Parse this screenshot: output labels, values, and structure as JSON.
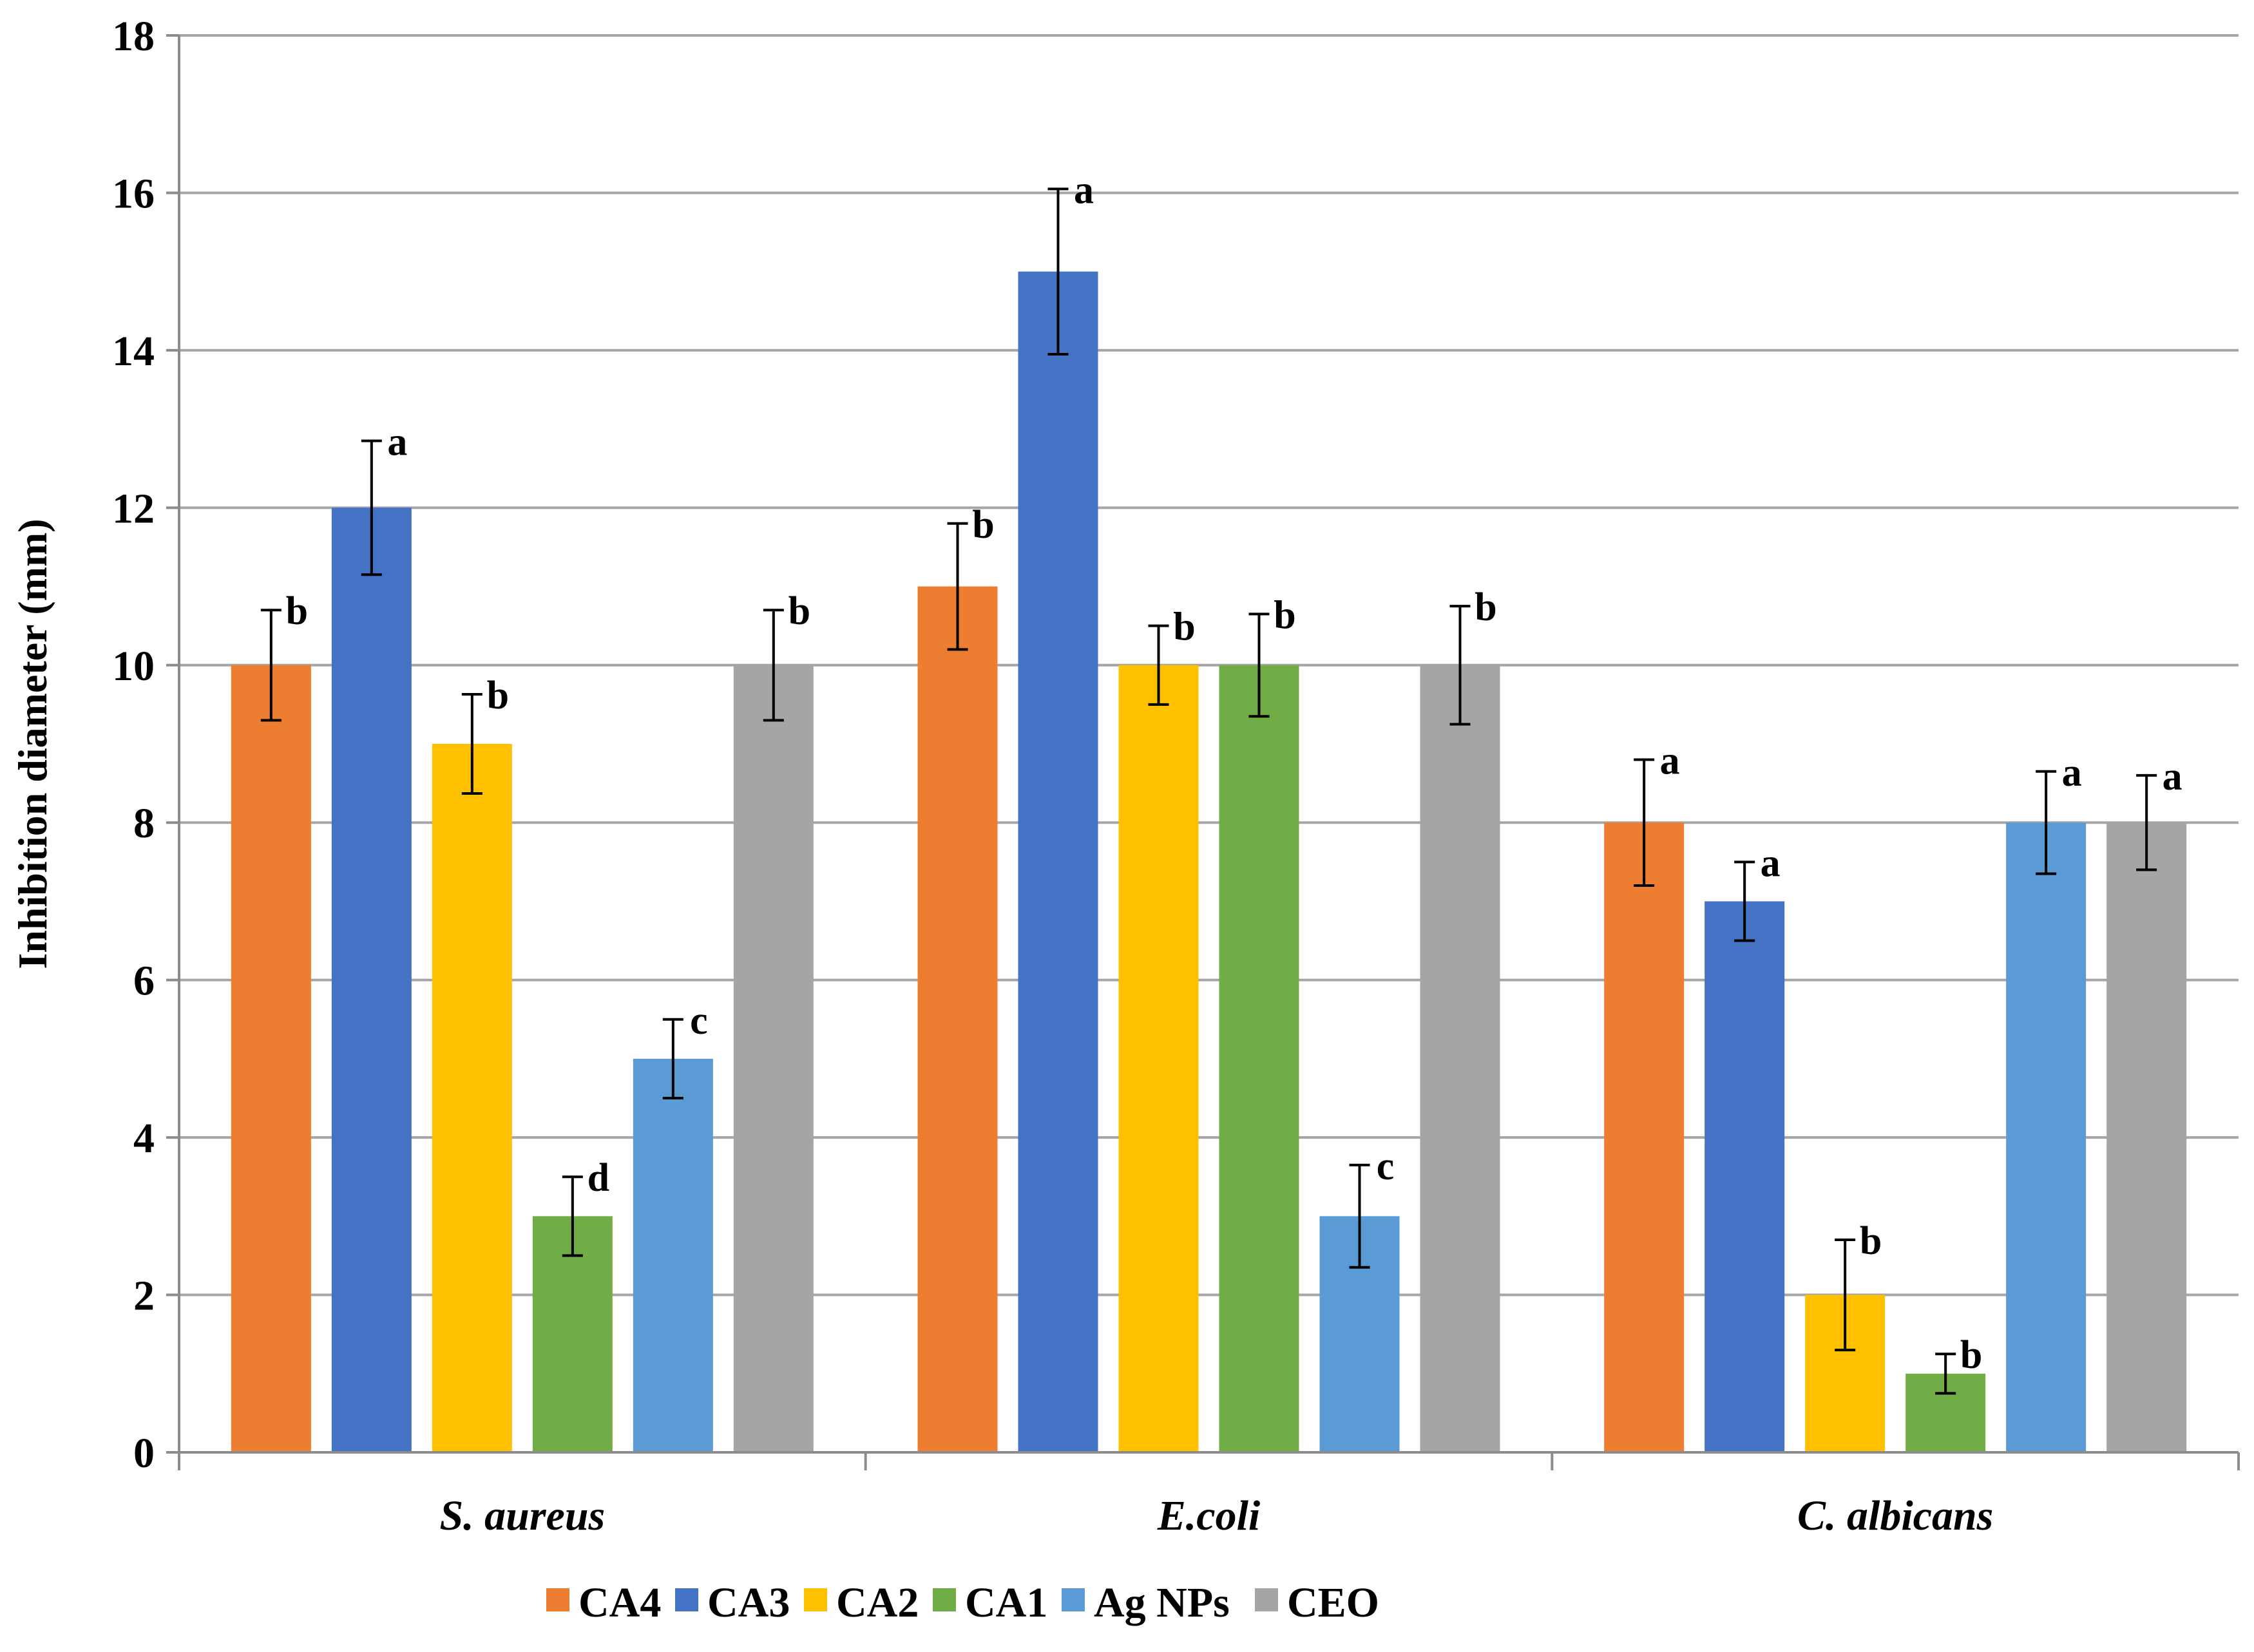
{
  "chart_data": {
    "type": "bar",
    "title": "",
    "xlabel": "",
    "ylabel": "Inhibition diameter (mm)",
    "ylim": [
      0,
      18
    ],
    "yticks": [
      0,
      2,
      4,
      6,
      8,
      10,
      12,
      14,
      16,
      18
    ],
    "grid": true,
    "legend_position": "bottom",
    "categories": [
      "S. aureus",
      "E.coli",
      "C. albicans"
    ],
    "series": [
      {
        "name": "CA4",
        "color": "#ED7D31",
        "values": [
          10,
          11,
          8
        ],
        "errors": [
          0.7,
          0.8,
          0.8
        ],
        "letters": [
          "b",
          "b",
          "a"
        ]
      },
      {
        "name": "CA3",
        "color": "#4472C4",
        "values": [
          12,
          15,
          7
        ],
        "errors": [
          0.85,
          1.05,
          0.5
        ],
        "letters": [
          "a",
          "a",
          "a"
        ]
      },
      {
        "name": "CA2",
        "color": "#FFC000",
        "values": [
          9,
          10,
          2
        ],
        "errors": [
          0.63,
          0.5,
          0.7
        ],
        "letters": [
          "b",
          "b",
          "b"
        ]
      },
      {
        "name": "CA1",
        "color": "#70AD47",
        "values": [
          3,
          10,
          1
        ],
        "errors": [
          0.5,
          0.65,
          0.25
        ],
        "letters": [
          "d",
          "b",
          "b"
        ]
      },
      {
        "name": "Ag NPs",
        "color": "#5B9BD5",
        "values": [
          5,
          3,
          8
        ],
        "errors": [
          0.5,
          0.65,
          0.65
        ],
        "letters": [
          "c",
          "c",
          "a"
        ]
      },
      {
        "name": "CEO",
        "color": "#A5A5A5",
        "values": [
          10,
          10,
          8
        ],
        "errors": [
          0.7,
          0.75,
          0.6
        ],
        "letters": [
          "b",
          "b",
          "a"
        ]
      }
    ]
  }
}
